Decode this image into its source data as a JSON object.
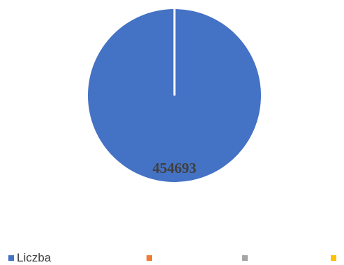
{
  "chart_data": {
    "type": "pie",
    "categories": [
      "Liczba",
      "",
      "",
      ""
    ],
    "values": [
      454693,
      0,
      0,
      0
    ],
    "data_labels": [
      "454693"
    ],
    "colors": [
      "#4472c4",
      "#ed7d31",
      "#a5a5a5",
      "#ffc000"
    ],
    "legend_position": "bottom"
  }
}
